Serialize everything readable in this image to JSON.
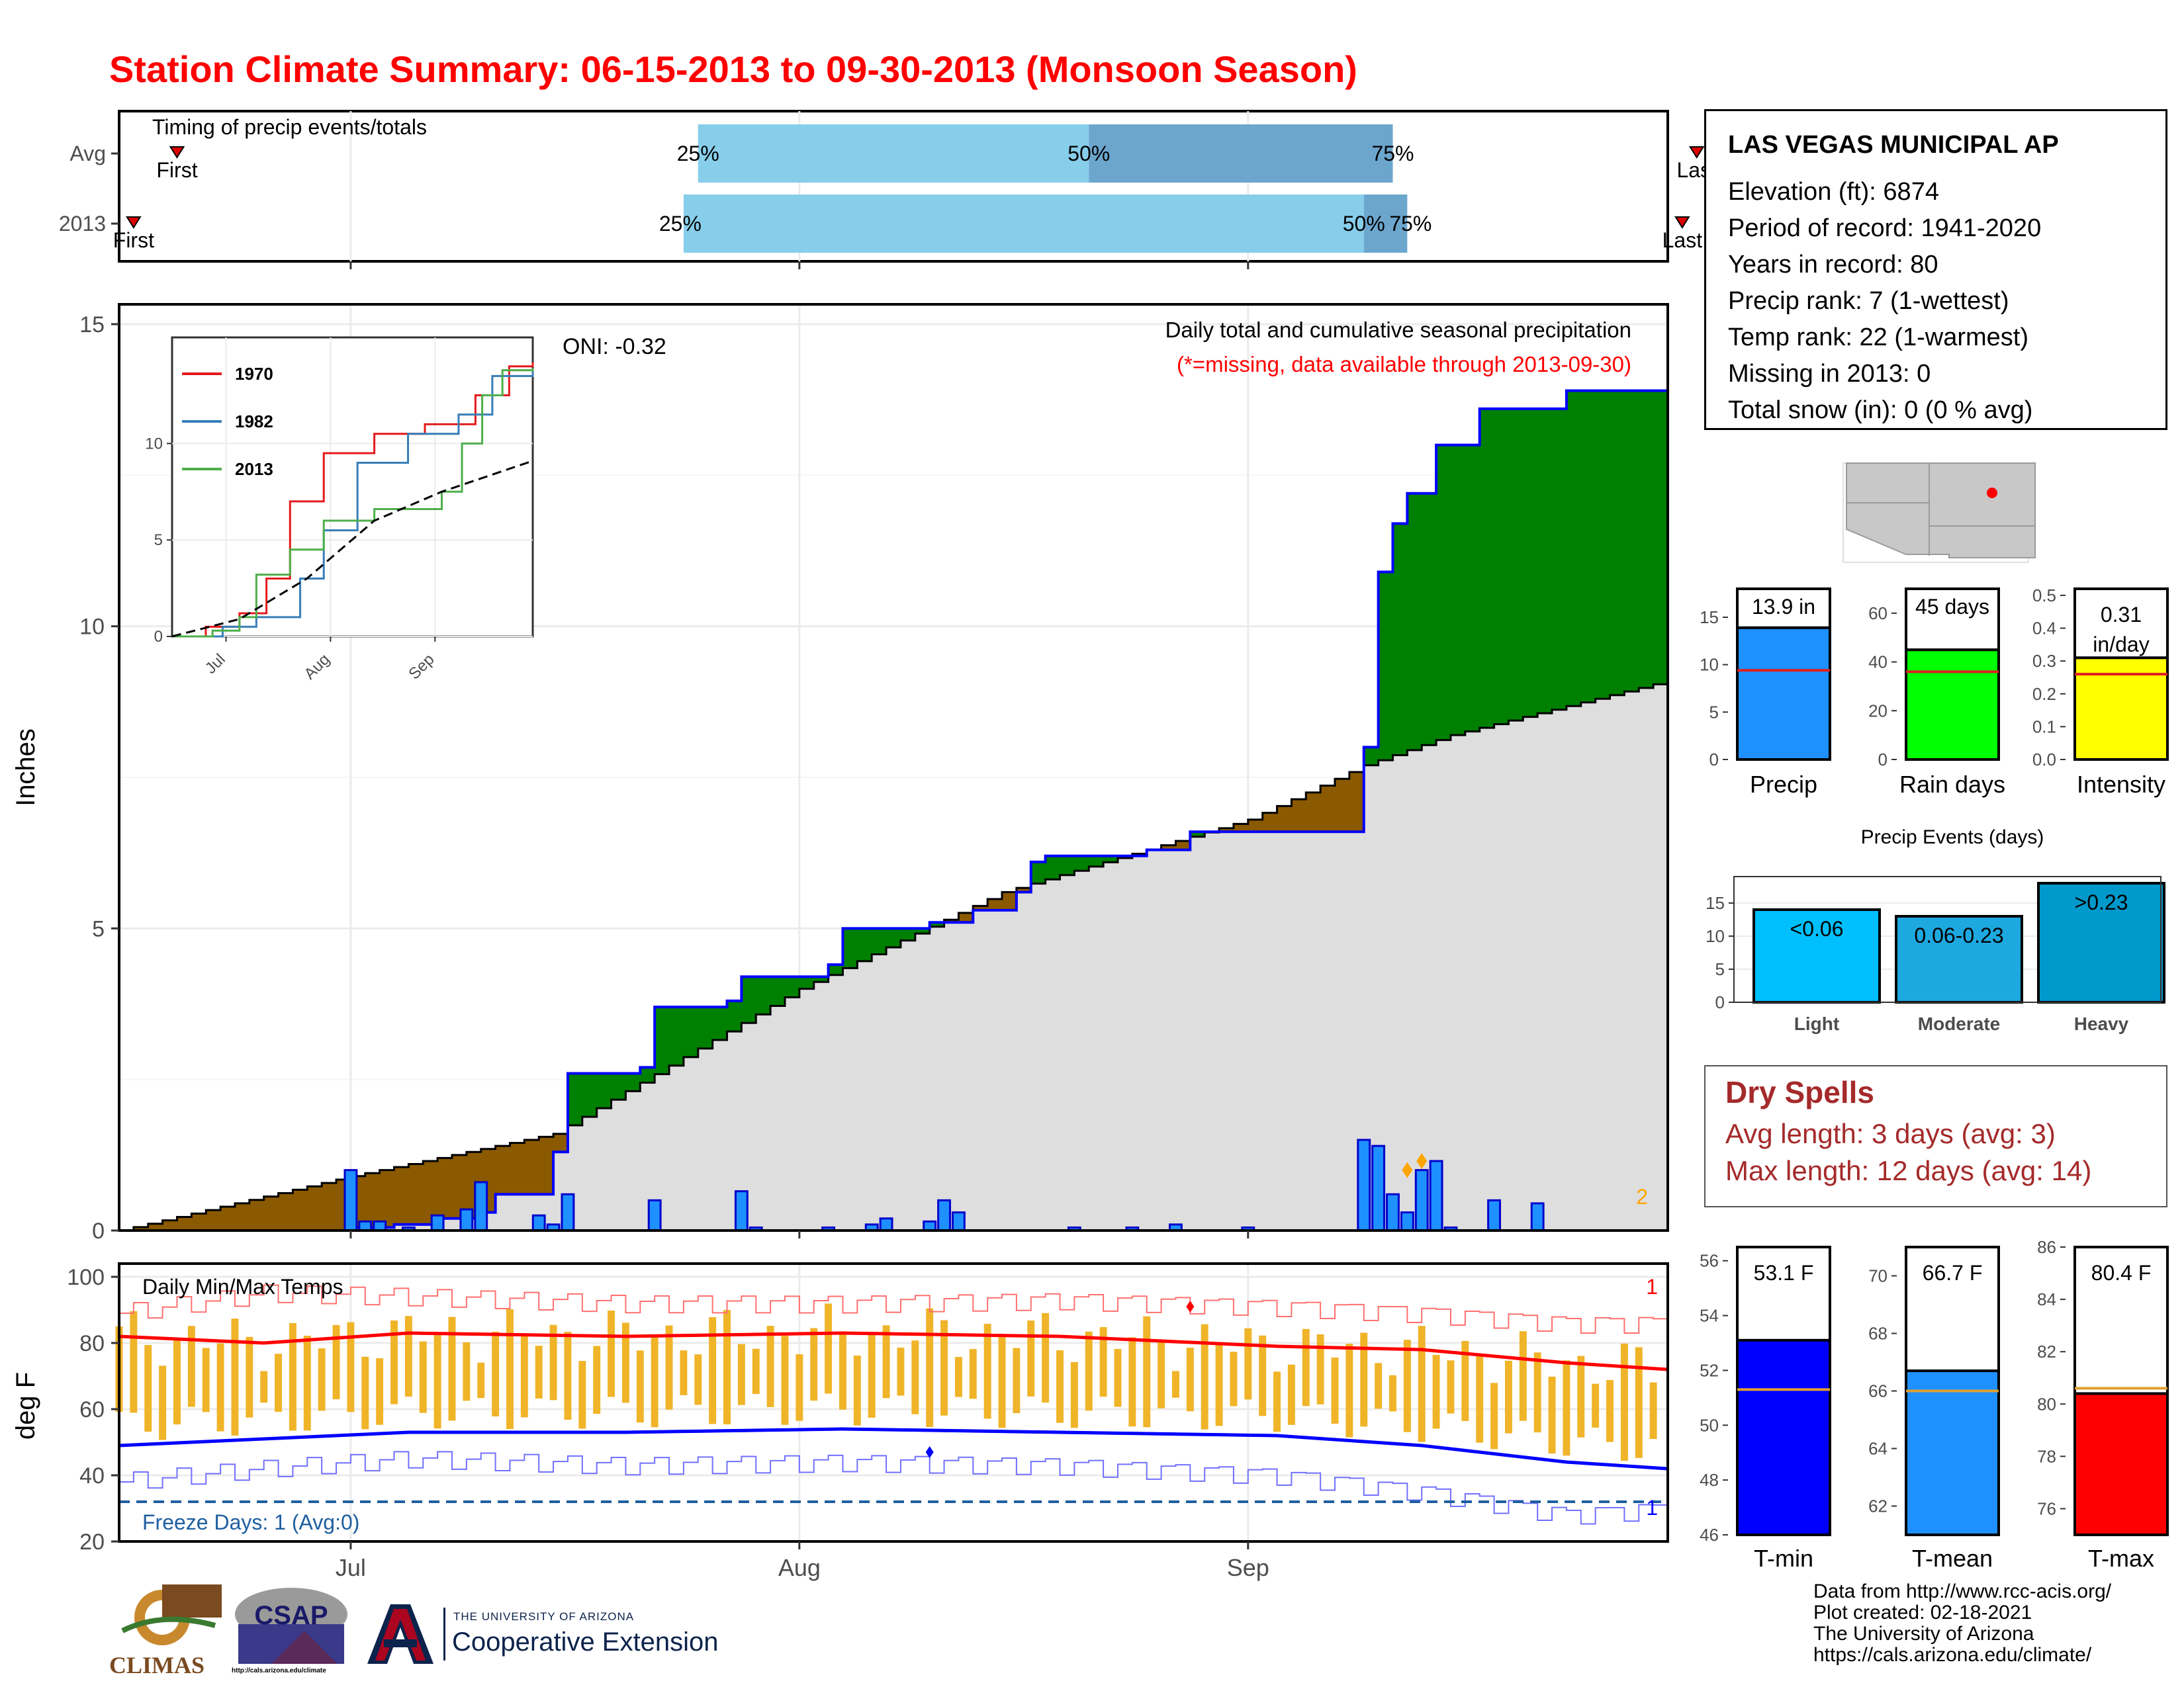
{
  "title": "Station Climate Summary: 06-15-2013 to 09-30-2013 (Monsoon Season)",
  "station": {
    "name": "LAS VEGAS MUNICIPAL AP",
    "lines": [
      "Elevation (ft): 6874",
      "Period of record: 1941-2020",
      "Years in record: 80",
      "Precip rank: 7 (1-wettest)",
      "Temp rank: 22 (1-warmest)",
      "Missing in 2013: 0",
      "Total snow (in): 0 (0 % avg)"
    ]
  },
  "timing": {
    "title": "Timing of precip events/totals",
    "rows": [
      {
        "label": "Avg",
        "first_label": "First",
        "last_label": "Last",
        "p25_label": "25%",
        "p50_label": "50%",
        "p75_label": "75%",
        "first_day": 4,
        "p25_day": 40,
        "p50_day": 67,
        "p75_day": 88,
        "last_day": 109
      },
      {
        "label": "2013",
        "first_label": "First",
        "last_label": "Last",
        "p25_label": "25%",
        "p50_label": "50%",
        "p75_label": "75%",
        "first_day": 1,
        "p25_day": 39,
        "p50_day": 86,
        "p75_day": 89,
        "last_day": 108
      }
    ]
  },
  "precip_panel": {
    "ylabel": "Inches",
    "oni_label": "ONI: -0.32",
    "subtitle": "Daily total and cumulative seasonal precipitation",
    "missing_note": "(*=missing, data available through 2013-09-30)",
    "corner_count": "2",
    "yticks": [
      "0",
      "5",
      "10",
      "15"
    ],
    "xticks": [
      "Jul",
      "Aug",
      "Sep"
    ]
  },
  "temp_panel": {
    "ylabel": "deg F",
    "title": "Daily Min/Max Temps",
    "freeze_label": "Freeze Days: 1 (Avg:0)",
    "corner_top": "1",
    "corner_bottom": "1",
    "yticks": [
      "20",
      "40",
      "60",
      "80",
      "100"
    ],
    "xticks": [
      "Jul",
      "Aug",
      "Sep"
    ]
  },
  "inset": {
    "legend": [
      "1970",
      "1982",
      "2013"
    ],
    "yticks": [
      "0",
      "5",
      "10"
    ],
    "xticks": [
      "Jul",
      "Aug",
      "Sep"
    ],
    "colors": {
      "1970": "#e41a1c",
      "1982": "#377eb8",
      "2013": "#4daf4a"
    }
  },
  "summary_bars": [
    {
      "name": "precip",
      "xlabel": "Precip",
      "value_label": "13.9 in",
      "value": 13.9,
      "avg": 9.4,
      "color": "#1e90ff",
      "yticks": [
        "0",
        "5",
        "10",
        "15"
      ]
    },
    {
      "name": "rain-days",
      "xlabel": "Rain days",
      "value_label": "45 days",
      "value": 45,
      "avg": 36,
      "color": "#00ff00",
      "yticks": [
        "0",
        "20",
        "40",
        "60"
      ]
    },
    {
      "name": "intensity",
      "xlabel": "Intensity",
      "value_label": "0.31 in/day",
      "value": 0.31,
      "avg": 0.26,
      "color": "#ffff00",
      "yticks": [
        "0.0",
        "0.1",
        "0.2",
        "0.3",
        "0.4",
        "0.5"
      ]
    }
  ],
  "events": {
    "title": "Precip Events (days)",
    "yticks": [
      "0",
      "5",
      "10",
      "15"
    ],
    "bars": [
      {
        "label": "Light",
        "value_label": "<0.06",
        "value": 14,
        "color": "#00bfff"
      },
      {
        "label": "Moderate",
        "value_label": "0.06-0.23",
        "value": 13,
        "color": "#1ea8e0"
      },
      {
        "label": "Heavy",
        "value_label": ">0.23",
        "value": 18,
        "color": "#0099cc"
      }
    ]
  },
  "dry_spells": {
    "title": "Dry Spells",
    "avg_line": "Avg length: 3 days (avg: 3)",
    "max_line": "Max length: 12 days (avg: 14)"
  },
  "temp_bars": [
    {
      "name": "t-min",
      "xlabel": "T-min",
      "value_label": "53.1 F",
      "value": 53.1,
      "avg": 51.3,
      "color": "#0000ff",
      "ylim": [
        46,
        56.5
      ],
      "yticks": [
        "46",
        "48",
        "50",
        "52",
        "54",
        "56"
      ]
    },
    {
      "name": "t-mean",
      "xlabel": "T-mean",
      "value_label": "66.7 F",
      "value": 66.7,
      "avg": 66.0,
      "color": "#1e90ff",
      "ylim": [
        61,
        71
      ],
      "yticks": [
        "62",
        "64",
        "66",
        "68",
        "70"
      ]
    },
    {
      "name": "t-max",
      "xlabel": "T-max",
      "value_label": "80.4 F",
      "value": 80.4,
      "avg": 80.6,
      "color": "#ff0000",
      "ylim": [
        75,
        86
      ],
      "yticks": [
        "76",
        "78",
        "80",
        "82",
        "84",
        "86"
      ]
    }
  ],
  "footer": {
    "lines": [
      "Data from http://www.rcc-acis.org/",
      "Plot created: 02-18-2021",
      "The University of Arizona",
      "https://cals.arizona.edu/climate/"
    ]
  },
  "logos": {
    "climas": "CLIMAS",
    "csap": "CSAP",
    "csap_url": "http://cals.arizona.edu/climate",
    "ua_small": "THE UNIVERSITY OF ARIZONA",
    "ua_big": "Cooperative Extension"
  },
  "chart_data": [
    {
      "type": "area",
      "title": "Daily total and cumulative seasonal precipitation",
      "ylabel": "Inches",
      "ylim": [
        0,
        15
      ],
      "x_start": "2013-06-15",
      "x_end": "2013-09-30",
      "series": [
        {
          "name": "Cumulative 2013",
          "points": [
            [
              "2013-06-15",
              0.0
            ],
            [
              "2013-07-01",
              0.05
            ],
            [
              "2013-07-04",
              0.1
            ],
            [
              "2013-07-07",
              0.2
            ],
            [
              "2013-07-10",
              0.3
            ],
            [
              "2013-07-11",
              0.6
            ],
            [
              "2013-07-15",
              1.3
            ],
            [
              "2013-07-16",
              2.6
            ],
            [
              "2013-07-21",
              2.7
            ],
            [
              "2013-07-22",
              3.7
            ],
            [
              "2013-07-27",
              3.8
            ],
            [
              "2013-07-28",
              4.2
            ],
            [
              "2013-08-03",
              4.4
            ],
            [
              "2013-08-04",
              5.0
            ],
            [
              "2013-08-10",
              5.1
            ],
            [
              "2013-08-13",
              5.3
            ],
            [
              "2013-08-16",
              5.6
            ],
            [
              "2013-08-17",
              6.1
            ],
            [
              "2013-08-18",
              6.2
            ],
            [
              "2013-08-25",
              6.3
            ],
            [
              "2013-08-28",
              6.6
            ],
            [
              "2013-09-01",
              6.6
            ],
            [
              "2013-09-09",
              8.0
            ],
            [
              "2013-09-10",
              10.9
            ],
            [
              "2013-09-11",
              11.7
            ],
            [
              "2013-09-12",
              12.2
            ],
            [
              "2013-09-14",
              13.0
            ],
            [
              "2013-09-17",
              13.6
            ],
            [
              "2013-09-23",
              13.9
            ],
            [
              "2013-09-30",
              13.9
            ]
          ]
        },
        {
          "name": "Average cumulative",
          "points": [
            [
              "2013-06-15",
              0.0
            ],
            [
              "2013-07-01",
              0.9
            ],
            [
              "2013-07-15",
              1.6
            ],
            [
              "2013-08-01",
              4.0
            ],
            [
              "2013-08-15",
              5.6
            ],
            [
              "2013-09-01",
              6.8
            ],
            [
              "2013-09-09",
              7.7
            ],
            [
              "2013-09-15",
              8.2
            ],
            [
              "2013-09-30",
              9.1
            ]
          ]
        },
        {
          "name": "Daily precip",
          "points": [
            [
              "2013-07-01",
              1.0
            ],
            [
              "2013-07-02",
              0.15
            ],
            [
              "2013-07-03",
              0.15
            ],
            [
              "2013-07-05",
              0.05
            ],
            [
              "2013-07-07",
              0.25
            ],
            [
              "2013-07-09",
              0.35
            ],
            [
              "2013-07-10",
              0.8
            ],
            [
              "2013-07-14",
              0.25
            ],
            [
              "2013-07-15",
              0.1
            ],
            [
              "2013-07-16",
              0.6
            ],
            [
              "2013-07-22",
              0.5
            ],
            [
              "2013-07-28",
              0.65
            ],
            [
              "2013-07-29",
              0.05
            ],
            [
              "2013-08-03",
              0.05
            ],
            [
              "2013-08-06",
              0.1
            ],
            [
              "2013-08-07",
              0.2
            ],
            [
              "2013-08-10",
              0.15
            ],
            [
              "2013-08-11",
              0.5
            ],
            [
              "2013-08-12",
              0.3
            ],
            [
              "2013-08-20",
              0.05
            ],
            [
              "2013-08-24",
              0.05
            ],
            [
              "2013-08-27",
              0.1
            ],
            [
              "2013-09-01",
              0.05
            ],
            [
              "2013-09-09",
              1.5
            ],
            [
              "2013-09-10",
              1.4
            ],
            [
              "2013-09-11",
              0.6
            ],
            [
              "2013-09-12",
              0.3
            ],
            [
              "2013-09-13",
              1.0
            ],
            [
              "2013-09-14",
              1.15
            ],
            [
              "2013-09-15",
              0.05
            ],
            [
              "2013-09-18",
              0.5
            ],
            [
              "2013-09-21",
              0.45
            ]
          ]
        }
      ]
    },
    {
      "type": "line",
      "ylim": [
        0,
        15
      ],
      "xticks": [
        "Jul",
        "Aug",
        "Sep"
      ],
      "series": [
        {
          "name": "1970",
          "points": [
            [
              0,
              0
            ],
            [
              10,
              0.5
            ],
            [
              20,
              1.2
            ],
            [
              28,
              3
            ],
            [
              35,
              7
            ],
            [
              45,
              9.5
            ],
            [
              60,
              10.5
            ],
            [
              75,
              11
            ],
            [
              90,
              12.5
            ],
            [
              100,
              14
            ],
            [
              107,
              14.2
            ]
          ]
        },
        {
          "name": "1982",
          "points": [
            [
              0,
              0
            ],
            [
              15,
              0.5
            ],
            [
              25,
              1
            ],
            [
              38,
              3
            ],
            [
              45,
              5.5
            ],
            [
              55,
              9
            ],
            [
              70,
              10.5
            ],
            [
              85,
              11.5
            ],
            [
              95,
              13.5
            ],
            [
              107,
              13.8
            ]
          ]
        },
        {
          "name": "2013",
          "points": [
            [
              0,
              0
            ],
            [
              12,
              0.3
            ],
            [
              20,
              1
            ],
            [
              25,
              3.2
            ],
            [
              35,
              4.5
            ],
            [
              45,
              6
            ],
            [
              60,
              6.6
            ],
            [
              80,
              7.5
            ],
            [
              86,
              10
            ],
            [
              92,
              12.5
            ],
            [
              98,
              13.8
            ],
            [
              107,
              13.9
            ]
          ]
        },
        {
          "name": "Average",
          "points": [
            [
              0,
              0
            ],
            [
              20,
              0.9
            ],
            [
              40,
              3
            ],
            [
              60,
              6
            ],
            [
              80,
              7.5
            ],
            [
              107,
              9.1
            ]
          ]
        }
      ]
    },
    {
      "type": "line",
      "title": "Daily Min/Max Temps",
      "ylabel": "deg F",
      "ylim": [
        20,
        100
      ],
      "x_start": "2013-06-15",
      "x_end": "2013-09-30",
      "freeze_threshold_f": 32,
      "series": [
        {
          "name": "Avg max",
          "points": [
            [
              0,
              82
            ],
            [
              10,
              80
            ],
            [
              20,
              83
            ],
            [
              35,
              82
            ],
            [
              50,
              83
            ],
            [
              65,
              82
            ],
            [
              80,
              79
            ],
            [
              90,
              78
            ],
            [
              100,
              74
            ],
            [
              107,
              72
            ]
          ]
        },
        {
          "name": "Avg min",
          "points": [
            [
              0,
              49
            ],
            [
              10,
              51
            ],
            [
              20,
              53
            ],
            [
              35,
              53
            ],
            [
              50,
              54
            ],
            [
              65,
              53
            ],
            [
              80,
              52
            ],
            [
              90,
              49
            ],
            [
              100,
              44
            ],
            [
              107,
              42
            ]
          ]
        },
        {
          "name": "Record max",
          "points": [
            [
              0,
              89
            ],
            [
              10,
              95
            ],
            [
              20,
              94
            ],
            [
              35,
              92
            ],
            [
              50,
              92
            ],
            [
              65,
              93
            ],
            [
              80,
              91
            ],
            [
              90,
              89
            ],
            [
              100,
              86
            ],
            [
              107,
              86
            ]
          ]
        },
        {
          "name": "Record min",
          "points": [
            [
              0,
              38
            ],
            [
              10,
              42
            ],
            [
              20,
              45
            ],
            [
              35,
              43
            ],
            [
              50,
              44
            ],
            [
              65,
              43
            ],
            [
              80,
              40
            ],
            [
              90,
              35
            ],
            [
              100,
              28
            ],
            [
              107,
              30
            ]
          ]
        }
      ]
    }
  ]
}
